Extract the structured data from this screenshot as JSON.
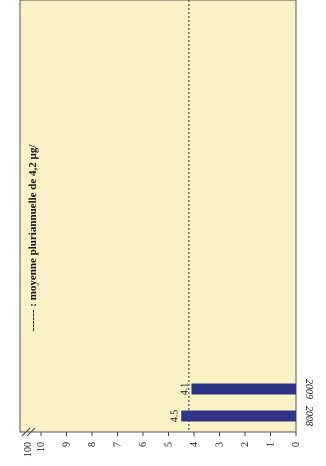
{
  "chart_data": {
    "type": "bar",
    "orientation": "horizontal-rotated",
    "categories": [
      "2008",
      "2009"
    ],
    "values": [
      4.5,
      4.1
    ],
    "data_labels": [
      "4.5",
      "4.1"
    ],
    "axis": {
      "ticks": [
        "0",
        "1",
        "2",
        "3",
        "4",
        "5",
        "6",
        "7",
        "8",
        "9",
        "10",
        "100"
      ],
      "range": [
        0,
        10
      ],
      "break_label": "100"
    },
    "reference_line": {
      "value": 4.2,
      "style": "dashed",
      "legend": "------ : moyenne pluriannuelle de 4,2 µg/"
    },
    "colors": {
      "plot_background": "#fbf2c7",
      "bar": "#2e3587",
      "axis": "#444444"
    }
  }
}
